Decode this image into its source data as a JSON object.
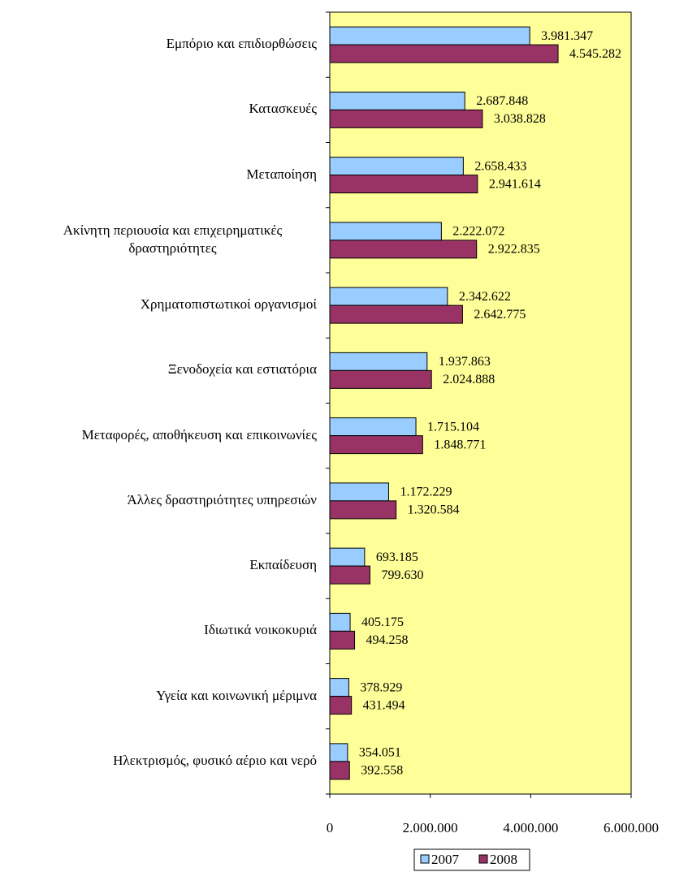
{
  "chart_data": {
    "type": "barh",
    "categories": [
      "Εμπόριο και επιδιορθώσεις",
      "Κατασκευές",
      "Μεταποίηση",
      "Ακίνητη περιουσία και επιχειρηματικές δραστηριότητες",
      "Χρηματοπιστωτικοί οργανισμοί",
      "Ξενοδοχεία και εστιατόρια",
      "Μεταφορές, αποθήκευση και επικοινωνίες",
      "Άλλες δραστηριότητες υπηρεσιών",
      "Εκπαίδευση",
      "Ιδιωτικά νοικοκυριά",
      "Υγεία και κοινωνική μέριμνα",
      "Ηλεκτρισμός, φυσικό αέριο και νερό"
    ],
    "series": [
      {
        "name": "2007",
        "color": "#99ccff",
        "values": [
          3981347,
          2687848,
          2658433,
          2222072,
          2342622,
          1937863,
          1715104,
          1172229,
          693185,
          405175,
          378929,
          354051
        ],
        "value_labels": [
          "3.981.347",
          "2.687.848",
          "2.658.433",
          "2.222.072",
          "2.342.622",
          "1.937.863",
          "1.715.104",
          "1.172.229",
          "693.185",
          "405.175",
          "378.929",
          "354.051"
        ]
      },
      {
        "name": "2008",
        "color": "#993366",
        "values": [
          4545282,
          3038828,
          2941614,
          2922835,
          2642775,
          2024888,
          1848771,
          1320584,
          799630,
          494258,
          431494,
          392558
        ],
        "value_labels": [
          "4.545.282",
          "3.038.828",
          "2.941.614",
          "2.922.835",
          "2.642.775",
          "2.024.888",
          "1.848.771",
          "1.320.584",
          "799.630",
          "494.258",
          "431.494",
          "392.558"
        ]
      }
    ],
    "xlim": [
      0,
      6000000
    ],
    "xticks": [
      0,
      {
        "value": 2000000,
        "label": "2.000.000"
      },
      {
        "value": 4000000,
        "label": "4.000.000"
      },
      {
        "value": 6000000,
        "label": "6.000.000"
      }
    ],
    "plot_background": "#ffff99",
    "legend": "bottom"
  }
}
